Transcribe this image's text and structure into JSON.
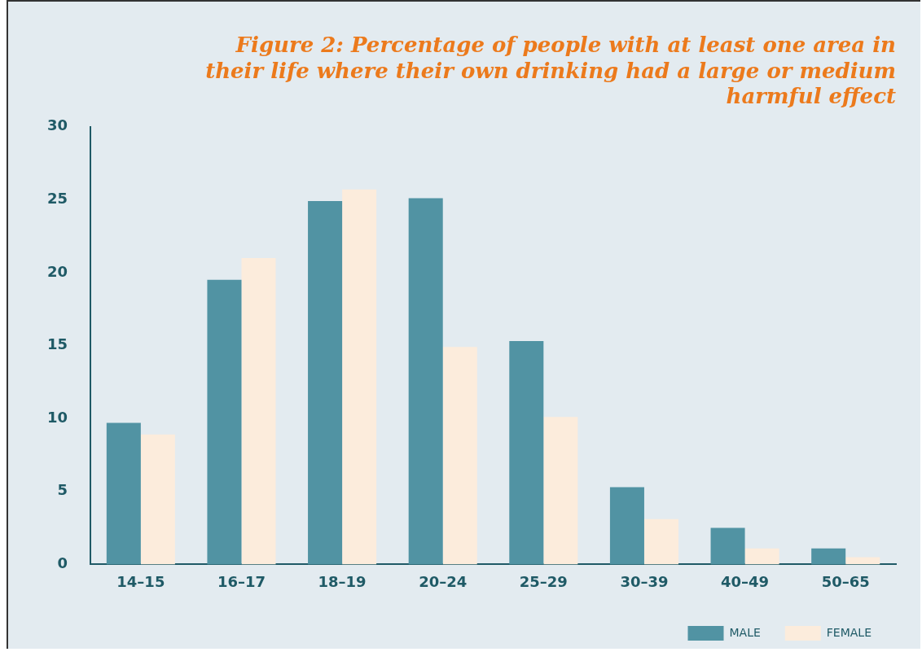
{
  "chart_data": {
    "type": "bar",
    "title": "Figure 2: Percentage of people with at least one area in their life where their own drinking had a large or medium harmful effect",
    "categories": [
      "14–15",
      "16–17",
      "18–19",
      "20–24",
      "25–29",
      "30–39",
      "40–49",
      "50–65"
    ],
    "series": [
      {
        "name": "MALE",
        "color": "#5193a3",
        "values": [
          9.7,
          19.5,
          24.9,
          25.1,
          15.3,
          5.3,
          2.5,
          1.1
        ]
      },
      {
        "name": "FEMALE",
        "color": "#fcecdc",
        "values": [
          8.9,
          21,
          25.7,
          14.9,
          10.1,
          3.1,
          1.1,
          0.5
        ]
      }
    ],
    "ylim": [
      0,
      30
    ],
    "yticks": [
      0,
      5,
      10,
      15,
      20,
      25,
      30
    ],
    "grid": false,
    "legend": "bottom right"
  }
}
